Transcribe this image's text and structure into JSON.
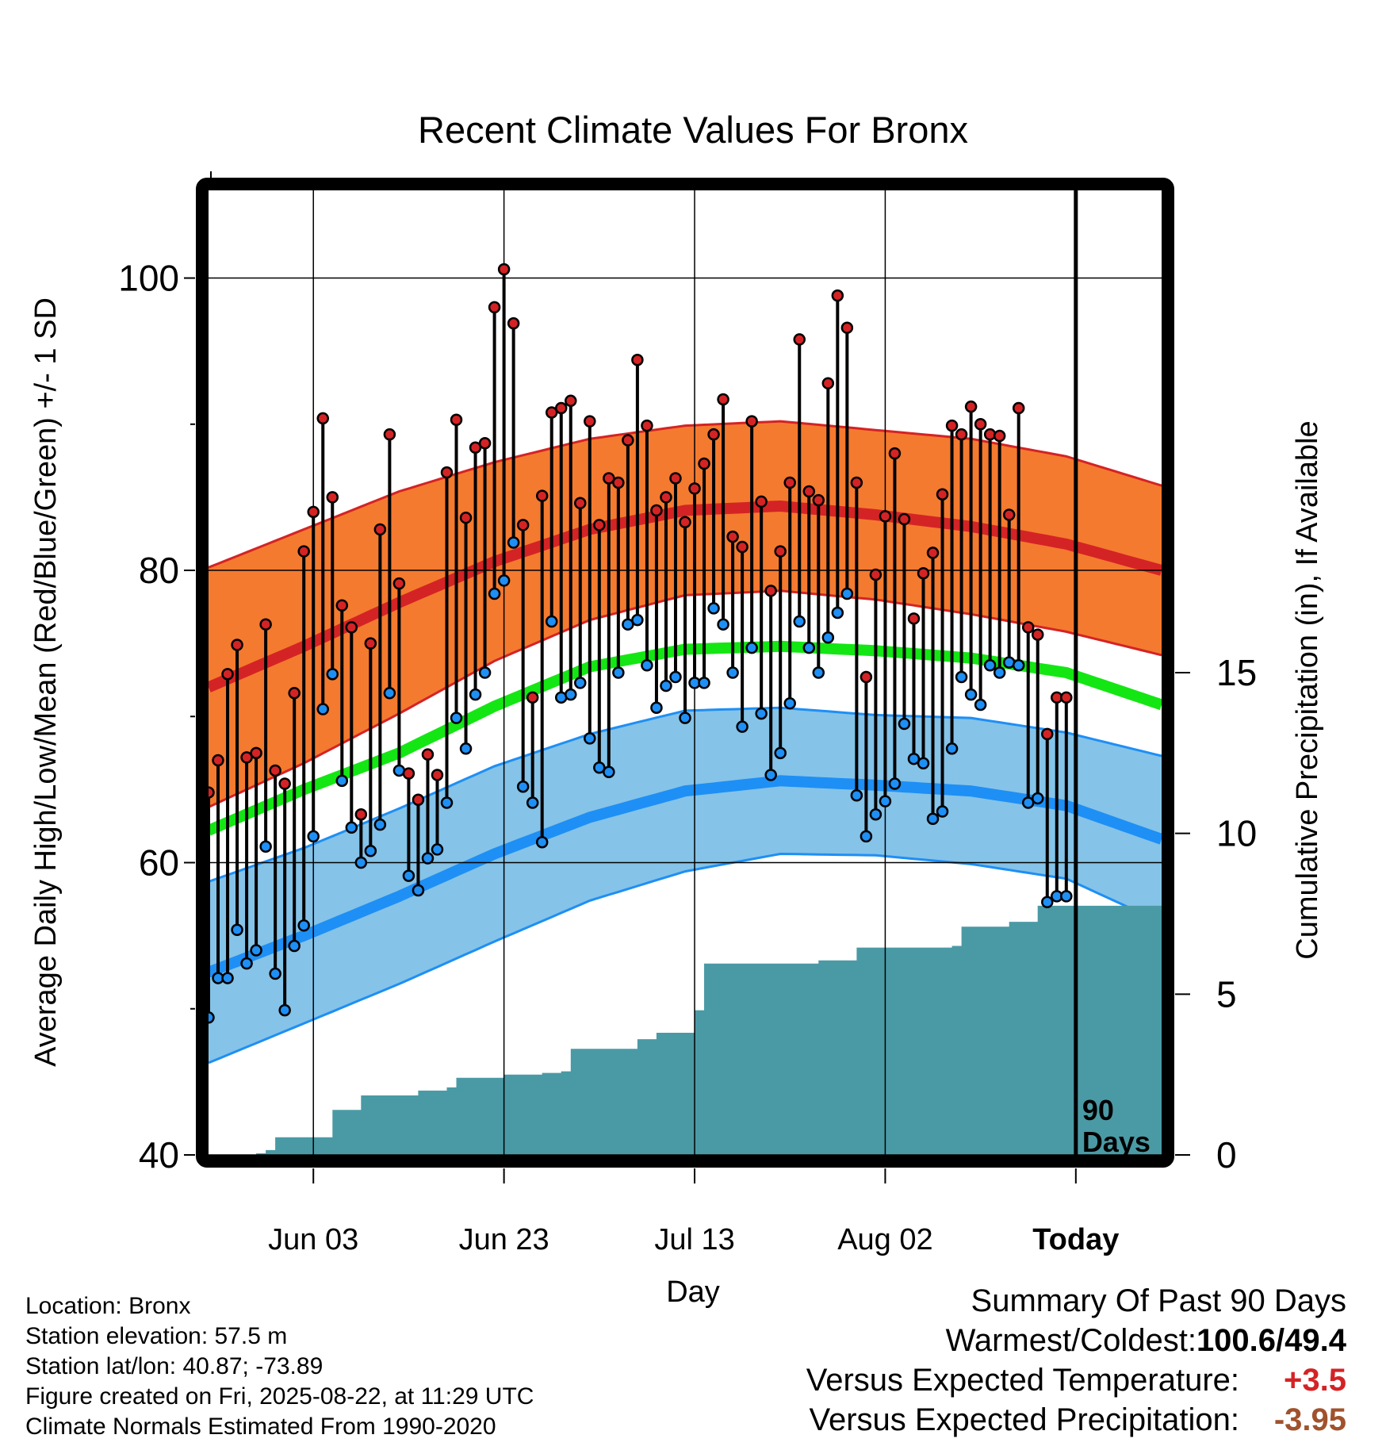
{
  "chart_data": {
    "type": "line",
    "title": "Recent Climate Values For Bronx",
    "xlabel": "Day",
    "ylabel": "Average Daily High/Low/Mean (Red/Blue/Green) +/- 1 SD",
    "y2label": "Cumulative Precipitation (in), If Available",
    "ylim": [
      40,
      106
    ],
    "y2lim": [
      0,
      30
    ],
    "yticks": [
      "40",
      "60",
      "80",
      "100"
    ],
    "y2ticks": [
      "0",
      "5",
      "10",
      "15"
    ],
    "xlim": [
      "2025-05-23",
      "2025-08-31"
    ],
    "xticks": [
      {
        "date": "2025-06-03",
        "label": "Jun 03"
      },
      {
        "date": "2025-06-23",
        "label": "Jun 23"
      },
      {
        "date": "2025-07-13",
        "label": "Jul 13"
      },
      {
        "date": "2025-08-02",
        "label": "Aug 02"
      },
      {
        "date": "2025-08-22",
        "label": "Today"
      }
    ],
    "today": "2025-08-22",
    "today_label": [
      "90",
      "Days"
    ],
    "grid": true,
    "colors": {
      "high_band": "#f47a2f",
      "high_normal": "#d42325",
      "high_band_edge": "#d42325",
      "mean_normal": "#14e614",
      "low_band": "#85c3e8",
      "low_normal": "#1e8ff5",
      "low_band_edge": "#1e8ff5",
      "precip": "#4a9aa5",
      "high_dot": "#d42325",
      "low_dot": "#1e8ff5"
    },
    "normals": {
      "dates": [
        "2025-05-23",
        "2025-06-02",
        "2025-06-12",
        "2025-06-22",
        "2025-07-02",
        "2025-07-12",
        "2025-07-22",
        "2025-08-01",
        "2025-08-11",
        "2025-08-21",
        "2025-08-31"
      ],
      "high": [
        72.0,
        74.8,
        77.8,
        80.6,
        82.8,
        84.1,
        84.4,
        83.8,
        83.0,
        81.8,
        80.0
      ],
      "high_sd": [
        8.2,
        8.0,
        7.6,
        6.8,
        6.2,
        5.8,
        5.8,
        5.8,
        6.0,
        6.0,
        5.8
      ],
      "mean": [
        62.2,
        65.0,
        67.5,
        70.7,
        73.4,
        74.6,
        74.8,
        74.5,
        74.0,
        73.0,
        70.8
      ],
      "low": [
        52.5,
        55.0,
        57.7,
        60.6,
        63.1,
        64.9,
        65.6,
        65.3,
        64.9,
        63.9,
        61.6
      ],
      "low_sd": [
        6.2,
        6.0,
        6.0,
        6.0,
        5.7,
        5.5,
        5.0,
        4.8,
        5.0,
        5.0,
        5.7
      ]
    },
    "series": [
      {
        "name": "Red",
        "x": [
          "2025-05-23",
          "2025-05-24",
          "2025-05-25",
          "2025-05-26",
          "2025-05-27",
          "2025-05-28",
          "2025-05-29",
          "2025-05-30",
          "2025-05-31",
          "2025-06-01",
          "2025-06-02",
          "2025-06-03",
          "2025-06-04",
          "2025-06-05",
          "2025-06-06",
          "2025-06-07",
          "2025-06-08",
          "2025-06-09",
          "2025-06-10",
          "2025-06-11",
          "2025-06-12",
          "2025-06-13",
          "2025-06-14",
          "2025-06-15",
          "2025-06-16",
          "2025-06-17",
          "2025-06-18",
          "2025-06-19",
          "2025-06-20",
          "2025-06-21",
          "2025-06-22",
          "2025-06-23",
          "2025-06-24",
          "2025-06-25",
          "2025-06-26",
          "2025-06-27",
          "2025-06-28",
          "2025-06-29",
          "2025-06-30",
          "2025-07-01",
          "2025-07-02",
          "2025-07-03",
          "2025-07-04",
          "2025-07-05",
          "2025-07-06",
          "2025-07-07",
          "2025-07-08",
          "2025-07-09",
          "2025-07-10",
          "2025-07-11",
          "2025-07-12",
          "2025-07-13",
          "2025-07-14",
          "2025-07-15",
          "2025-07-16",
          "2025-07-17",
          "2025-07-18",
          "2025-07-19",
          "2025-07-20",
          "2025-07-21",
          "2025-07-22",
          "2025-07-23",
          "2025-07-24",
          "2025-07-25",
          "2025-07-26",
          "2025-07-27",
          "2025-07-28",
          "2025-07-29",
          "2025-07-30",
          "2025-07-31",
          "2025-08-01",
          "2025-08-02",
          "2025-08-03",
          "2025-08-04",
          "2025-08-05",
          "2025-08-06",
          "2025-08-07",
          "2025-08-08",
          "2025-08-09",
          "2025-08-10",
          "2025-08-11",
          "2025-08-12",
          "2025-08-13",
          "2025-08-14",
          "2025-08-15",
          "2025-08-16",
          "2025-08-17",
          "2025-08-18",
          "2025-08-19",
          "2025-08-20",
          "2025-08-21"
        ],
        "values": [
          64.8,
          67.0,
          72.9,
          74.9,
          67.2,
          67.5,
          76.3,
          66.3,
          65.4,
          71.6,
          81.3,
          84.0,
          90.4,
          85.0,
          77.6,
          76.1,
          63.3,
          75.0,
          82.8,
          89.3,
          79.1,
          66.1,
          64.3,
          67.4,
          66.0,
          86.7,
          90.3,
          83.6,
          88.4,
          88.7,
          98.0,
          100.6,
          96.9,
          83.1,
          71.3,
          85.1,
          90.8,
          91.1,
          91.6,
          84.6,
          90.2,
          83.1,
          86.3,
          86.0,
          88.9,
          94.4,
          89.9,
          84.1,
          85.0,
          86.3,
          83.3,
          85.6,
          87.3,
          89.3,
          91.7,
          82.3,
          81.6,
          90.2,
          84.7,
          78.6,
          81.3,
          86.0,
          95.8,
          85.4,
          84.8,
          92.8,
          98.8,
          96.6,
          86.0,
          72.7,
          79.7,
          83.7,
          88.0,
          83.5,
          76.7,
          79.8,
          81.2,
          85.2,
          89.9,
          89.3,
          91.2,
          90.0,
          89.3,
          89.2,
          83.8,
          91.1,
          76.1,
          75.6,
          68.8,
          71.3,
          71.3
        ]
      },
      {
        "name": "Blue",
        "x": [
          "2025-05-23",
          "2025-05-24",
          "2025-05-25",
          "2025-05-26",
          "2025-05-27",
          "2025-05-28",
          "2025-05-29",
          "2025-05-30",
          "2025-05-31",
          "2025-06-01",
          "2025-06-02",
          "2025-06-03",
          "2025-06-04",
          "2025-06-05",
          "2025-06-06",
          "2025-06-07",
          "2025-06-08",
          "2025-06-09",
          "2025-06-10",
          "2025-06-11",
          "2025-06-12",
          "2025-06-13",
          "2025-06-14",
          "2025-06-15",
          "2025-06-16",
          "2025-06-17",
          "2025-06-18",
          "2025-06-19",
          "2025-06-20",
          "2025-06-21",
          "2025-06-22",
          "2025-06-23",
          "2025-06-24",
          "2025-06-25",
          "2025-06-26",
          "2025-06-27",
          "2025-06-28",
          "2025-06-29",
          "2025-06-30",
          "2025-07-01",
          "2025-07-02",
          "2025-07-03",
          "2025-07-04",
          "2025-07-05",
          "2025-07-06",
          "2025-07-07",
          "2025-07-08",
          "2025-07-09",
          "2025-07-10",
          "2025-07-11",
          "2025-07-12",
          "2025-07-13",
          "2025-07-14",
          "2025-07-15",
          "2025-07-16",
          "2025-07-17",
          "2025-07-18",
          "2025-07-19",
          "2025-07-20",
          "2025-07-21",
          "2025-07-22",
          "2025-07-23",
          "2025-07-24",
          "2025-07-25",
          "2025-07-26",
          "2025-07-27",
          "2025-07-28",
          "2025-07-29",
          "2025-07-30",
          "2025-07-31",
          "2025-08-01",
          "2025-08-02",
          "2025-08-03",
          "2025-08-04",
          "2025-08-05",
          "2025-08-06",
          "2025-08-07",
          "2025-08-08",
          "2025-08-09",
          "2025-08-10",
          "2025-08-11",
          "2025-08-12",
          "2025-08-13",
          "2025-08-14",
          "2025-08-15",
          "2025-08-16",
          "2025-08-17",
          "2025-08-18",
          "2025-08-19",
          "2025-08-20",
          "2025-08-21"
        ],
        "values": [
          49.4,
          52.1,
          52.1,
          55.4,
          53.1,
          54.0,
          61.1,
          52.4,
          49.9,
          54.3,
          55.7,
          61.8,
          70.5,
          72.9,
          65.6,
          62.4,
          60.0,
          60.8,
          62.6,
          71.6,
          66.3,
          59.1,
          58.1,
          60.3,
          60.9,
          64.1,
          69.9,
          67.8,
          71.5,
          73.0,
          78.4,
          79.3,
          81.9,
          65.2,
          64.1,
          61.4,
          76.5,
          71.3,
          71.5,
          72.3,
          68.5,
          66.5,
          66.2,
          73.0,
          76.3,
          76.6,
          73.5,
          70.6,
          72.1,
          72.7,
          69.9,
          72.3,
          72.3,
          77.4,
          76.3,
          73.0,
          69.3,
          74.7,
          70.2,
          66.0,
          67.5,
          70.9,
          76.5,
          74.7,
          73.0,
          75.4,
          77.1,
          78.4,
          64.6,
          61.8,
          63.3,
          64.2,
          65.4,
          69.5,
          67.1,
          66.8,
          63.0,
          63.5,
          67.8,
          72.7,
          71.5,
          70.8,
          73.5,
          73.0,
          73.7,
          73.5,
          64.1,
          64.4,
          57.3,
          57.7,
          57.7
        ]
      }
    ],
    "precipitation": {
      "x": [
        "2025-05-23",
        "2025-05-28",
        "2025-05-29",
        "2025-05-30",
        "2025-06-04",
        "2025-06-05",
        "2025-06-07",
        "2025-06-08",
        "2025-06-11",
        "2025-06-14",
        "2025-06-17",
        "2025-06-18",
        "2025-06-20",
        "2025-06-23",
        "2025-06-27",
        "2025-06-29",
        "2025-06-30",
        "2025-07-06",
        "2025-07-07",
        "2025-07-09",
        "2025-07-12",
        "2025-07-13",
        "2025-07-14",
        "2025-07-26",
        "2025-07-29",
        "2025-07-30",
        "2025-08-06",
        "2025-08-09",
        "2025-08-10",
        "2025-08-13",
        "2025-08-15",
        "2025-08-17",
        "2025-08-18",
        "2025-08-21"
      ],
      "values": [
        0.0,
        0.05,
        0.15,
        0.55,
        0.55,
        1.4,
        1.4,
        1.85,
        1.85,
        2.0,
        2.1,
        2.4,
        2.4,
        2.5,
        2.55,
        2.6,
        3.3,
        3.3,
        3.6,
        3.8,
        3.8,
        4.5,
        5.95,
        6.05,
        6.05,
        6.45,
        6.45,
        6.5,
        7.1,
        7.1,
        7.25,
        7.25,
        7.75,
        7.75
      ]
    }
  },
  "footer": {
    "location": "Location: Bronx",
    "elevation": "Station elevation: 57.5 m",
    "latlon": "Station lat/lon: 40.87; -73.89",
    "created": "Figure created on Fri, 2025-08-22, at 11:29 UTC",
    "normals": "Climate Normals Estimated From 1990-2020"
  },
  "summary": {
    "heading": "Summary Of Past 90 Days",
    "warmest_label": "Warmest/Coldest:",
    "warmest_value": "100.6/49.4",
    "temp_label": "Versus Expected Temperature:",
    "temp_value": "+3.5",
    "temp_color": "#d42325",
    "precip_label": "Versus Expected Precipitation:",
    "precip_value": "-3.95",
    "precip_color": "#a0522d"
  }
}
